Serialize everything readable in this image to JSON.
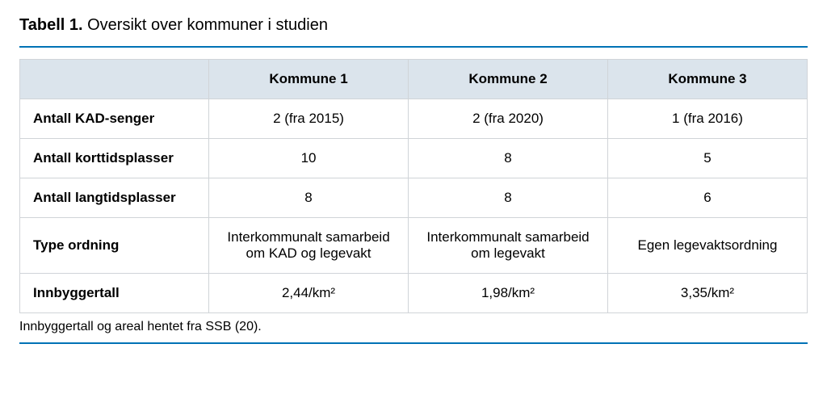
{
  "title": {
    "label": "Tabell 1.",
    "caption": "Oversikt over kommuner i studien"
  },
  "table": {
    "type": "table",
    "accent_color": "#0072b5",
    "header_bg": "#dbe4ec",
    "border_color": "#d0d4d8",
    "background_color": "#ffffff",
    "title_fontsize": 20,
    "cell_fontsize": 17,
    "columns": [
      "",
      "Kommune 1",
      "Kommune 2",
      "Kommune 3"
    ],
    "column_widths_pct": [
      24,
      25.33,
      25.33,
      25.33
    ],
    "header_align": "center",
    "rowlabel_align": "left",
    "value_align": "center",
    "rows": [
      {
        "label": "Antall KAD-senger",
        "cells": [
          "2 (fra 2015)",
          "2 (fra 2020)",
          "1 (fra 2016)"
        ]
      },
      {
        "label": "Antall korttidsplasser",
        "cells": [
          "10",
          "8",
          "5"
        ]
      },
      {
        "label": "Antall langtidsplasser",
        "cells": [
          "8",
          "8",
          "6"
        ]
      },
      {
        "label": "Type ordning",
        "cells": [
          "Interkommunalt samarbeid om KAD og legevakt",
          "Interkommunalt samarbeid om legevakt",
          "Egen legevaktsordning"
        ]
      },
      {
        "label": "Innbyggertall",
        "cells": [
          "2,44/km²",
          "1,98/km²",
          "3,35/km²"
        ]
      }
    ]
  },
  "footnote": "Innbyggertall og areal hentet fra SSB (20)."
}
